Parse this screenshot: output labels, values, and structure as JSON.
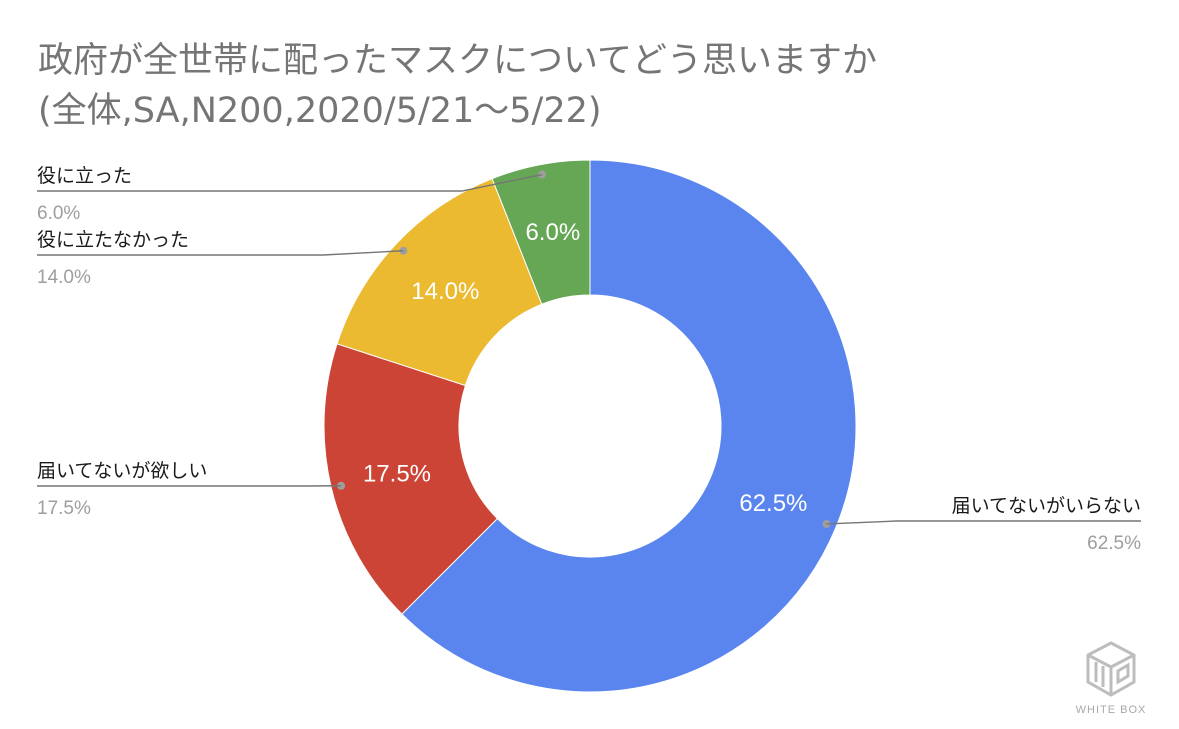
{
  "chart_data": {
    "type": "pie",
    "title": "政府が全世帯に配ったマスクについてどう思いますか",
    "subtitle": "(全体,SA,N200,2020/5/21～5/22)",
    "slices": [
      {
        "name": "届いてないがいらない",
        "value": 62.5,
        "label": "62.5%",
        "color": "#5b85ee"
      },
      {
        "name": "届いてないが欲しい",
        "value": 17.5,
        "label": "17.5%",
        "color": "#cc4435"
      },
      {
        "name": "役に立たなかった",
        "value": 14.0,
        "label": "14.0%",
        "color": "#ebba30"
      },
      {
        "name": "役に立った",
        "value": 6.0,
        "label": "6.0%",
        "color": "#66a755"
      }
    ],
    "legend": "callouts",
    "donut": true
  },
  "watermark": {
    "text": "WHITE BOX",
    "icon": "white-box-logo-icon"
  }
}
